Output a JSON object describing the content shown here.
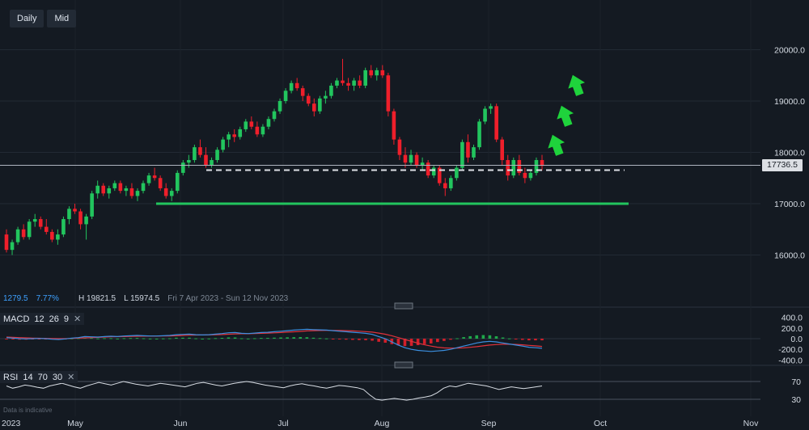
{
  "toolbar": {
    "daily_label": "Daily",
    "mid_label": "Mid"
  },
  "stats": {
    "change": "1279.5",
    "change_pct": "7.77%",
    "high": "H 19821.5",
    "low": "L 15974.5",
    "range": "Fri 7 Apr 2023 - Sun 12 Nov 2023"
  },
  "current_price": "17736.5",
  "disclaimer": "Data is indicative",
  "macd": {
    "label": "MACD",
    "p1": "12",
    "p2": "26",
    "p3": "9",
    "close": "✕"
  },
  "rsi": {
    "label": "RSI",
    "p1": "14",
    "p2": "70",
    "p3": "30",
    "close": "✕"
  },
  "colors": {
    "bull": "#22c55e",
    "bear": "#ef1f2b",
    "support": "#22c55e",
    "arrow": "#1fd33c",
    "macd_line": "#3b8fe0",
    "signal_line": "#e0323c"
  },
  "chart_data": {
    "type": "candlestick",
    "price_axis": {
      "ticks": [
        16000.0,
        17000.0,
        18000.0,
        19000.0,
        20000.0
      ],
      "labels": [
        "16000.0",
        "17000.0",
        "18000.0",
        "19000.0",
        "20000.0"
      ]
    },
    "x_axis": {
      "labels": [
        "2023",
        "May",
        "Jun",
        "Jul",
        "Aug",
        "Sep",
        "Oct",
        "Nov"
      ]
    },
    "macd_axis": {
      "ticks": [
        400,
        200,
        0,
        -200,
        -400
      ],
      "labels": [
        "400.0",
        "200.0",
        "0.0",
        "-200.0",
        "-400.0"
      ]
    },
    "rsi_axis": {
      "ticks": [
        70,
        30
      ],
      "labels": [
        "70",
        "30"
      ]
    },
    "horizontal_levels": [
      {
        "name": "resistance-dashed",
        "price": 17700,
        "style": "dashed",
        "color": "#dcdfe4"
      },
      {
        "name": "support",
        "price": 17000,
        "style": "solid",
        "color": "#22c55e"
      }
    ],
    "ohlc": [
      [
        16400,
        16500,
        16050,
        16100
      ],
      [
        16100,
        16300,
        16000,
        16250
      ],
      [
        16250,
        16550,
        16200,
        16500
      ],
      [
        16500,
        16600,
        16300,
        16350
      ],
      [
        16350,
        16700,
        16300,
        16650
      ],
      [
        16650,
        16800,
        16550,
        16700
      ],
      [
        16700,
        16750,
        16500,
        16550
      ],
      [
        16550,
        16700,
        16400,
        16450
      ],
      [
        16450,
        16500,
        16250,
        16300
      ],
      [
        16300,
        16500,
        16200,
        16400
      ],
      [
        16400,
        16750,
        16350,
        16700
      ],
      [
        16700,
        16950,
        16600,
        16900
      ],
      [
        16900,
        17000,
        16800,
        16850
      ],
      [
        16850,
        16900,
        16500,
        16600
      ],
      [
        16600,
        16800,
        16300,
        16750
      ],
      [
        16750,
        17250,
        16700,
        17200
      ],
      [
        17200,
        17450,
        17100,
        17350
      ],
      [
        17350,
        17400,
        17150,
        17200
      ],
      [
        17200,
        17350,
        17100,
        17300
      ],
      [
        17300,
        17450,
        17250,
        17400
      ],
      [
        17400,
        17450,
        17200,
        17250
      ],
      [
        17250,
        17350,
        17150,
        17300
      ],
      [
        17300,
        17400,
        17100,
        17150
      ],
      [
        17150,
        17300,
        17050,
        17250
      ],
      [
        17250,
        17450,
        17200,
        17400
      ],
      [
        17400,
        17600,
        17350,
        17550
      ],
      [
        17550,
        17700,
        17450,
        17500
      ],
      [
        17500,
        17550,
        17250,
        17300
      ],
      [
        17300,
        17400,
        17100,
        17150
      ],
      [
        17150,
        17300,
        17050,
        17250
      ],
      [
        17250,
        17650,
        17200,
        17600
      ],
      [
        17600,
        17850,
        17550,
        17800
      ],
      [
        17800,
        17950,
        17700,
        17850
      ],
      [
        17850,
        18150,
        17800,
        18100
      ],
      [
        18100,
        18250,
        17900,
        17950
      ],
      [
        17950,
        18100,
        17700,
        17750
      ],
      [
        17750,
        17900,
        17700,
        17850
      ],
      [
        17850,
        18100,
        17800,
        18050
      ],
      [
        18050,
        18300,
        18000,
        18250
      ],
      [
        18250,
        18400,
        18100,
        18350
      ],
      [
        18350,
        18450,
        18200,
        18300
      ],
      [
        18300,
        18500,
        18250,
        18450
      ],
      [
        18450,
        18650,
        18400,
        18600
      ],
      [
        18600,
        18700,
        18450,
        18500
      ],
      [
        18500,
        18600,
        18300,
        18350
      ],
      [
        18350,
        18550,
        18300,
        18500
      ],
      [
        18500,
        18700,
        18450,
        18650
      ],
      [
        18650,
        18850,
        18600,
        18800
      ],
      [
        18800,
        19050,
        18750,
        19000
      ],
      [
        19000,
        19250,
        18950,
        19200
      ],
      [
        19200,
        19400,
        19150,
        19350
      ],
      [
        19350,
        19450,
        19200,
        19250
      ],
      [
        19250,
        19300,
        19000,
        19100
      ],
      [
        19100,
        19150,
        18900,
        18950
      ],
      [
        18950,
        19050,
        18700,
        18800
      ],
      [
        18800,
        19100,
        18750,
        19050
      ],
      [
        19050,
        19200,
        18950,
        19100
      ],
      [
        19100,
        19350,
        19050,
        19300
      ],
      [
        19300,
        19450,
        19250,
        19400
      ],
      [
        19400,
        19821.5,
        19300,
        19350
      ],
      [
        19350,
        19450,
        19200,
        19300
      ],
      [
        19300,
        19450,
        19200,
        19400
      ],
      [
        19400,
        19500,
        19250,
        19300
      ],
      [
        19300,
        19650,
        19250,
        19600
      ],
      [
        19600,
        19700,
        19450,
        19500
      ],
      [
        19500,
        19650,
        19400,
        19600
      ],
      [
        19600,
        19700,
        19450,
        19500
      ],
      [
        19500,
        19550,
        18700,
        18800
      ],
      [
        18800,
        18850,
        18150,
        18250
      ],
      [
        18250,
        18300,
        17850,
        17950
      ],
      [
        17950,
        18100,
        17700,
        17800
      ],
      [
        17800,
        18050,
        17750,
        17950
      ],
      [
        17950,
        18000,
        17700,
        17750
      ],
      [
        17750,
        17900,
        17650,
        17800
      ],
      [
        17800,
        17850,
        17500,
        17550
      ],
      [
        17550,
        17750,
        17500,
        17700
      ],
      [
        17700,
        17750,
        17350,
        17400
      ],
      [
        17400,
        17500,
        17150,
        17300
      ],
      [
        17300,
        17550,
        17250,
        17500
      ],
      [
        17500,
        17750,
        17450,
        17700
      ],
      [
        17700,
        18250,
        17650,
        18200
      ],
      [
        18200,
        18350,
        17800,
        17900
      ],
      [
        17900,
        18150,
        17850,
        18100
      ],
      [
        18100,
        18650,
        18050,
        18600
      ],
      [
        18600,
        18900,
        18550,
        18850
      ],
      [
        18850,
        18950,
        18750,
        18900
      ],
      [
        18900,
        18950,
        18200,
        18250
      ],
      [
        18250,
        18300,
        17750,
        17850
      ],
      [
        17850,
        17950,
        17450,
        17550
      ],
      [
        17550,
        17900,
        17500,
        17850
      ],
      [
        17850,
        17950,
        17550,
        17600
      ],
      [
        17600,
        17700,
        17400,
        17500
      ],
      [
        17500,
        17650,
        17450,
        17600
      ],
      [
        17600,
        17900,
        17550,
        17850
      ],
      [
        17850,
        17950,
        17650,
        17736.5
      ]
    ],
    "macd": {
      "macd_line": [
        20,
        10,
        0,
        -5,
        0,
        5,
        0,
        -10,
        -15,
        -5,
        10,
        20,
        40,
        35,
        30,
        40,
        45,
        40,
        50,
        55,
        60,
        55,
        50,
        50,
        55,
        60,
        75,
        80,
        85,
        75,
        70,
        75,
        85,
        95,
        110,
        115,
        100,
        95,
        105,
        115,
        120,
        130,
        140,
        150,
        160,
        170,
        175,
        170,
        165,
        160,
        150,
        140,
        130,
        120,
        110,
        100,
        80,
        40,
        0,
        -60,
        -120,
        -170,
        -200,
        -220,
        -230,
        -240,
        -230,
        -220,
        -200,
        -170,
        -140,
        -110,
        -80,
        -60,
        -50,
        -60,
        -80,
        -100,
        -120,
        -140,
        -160,
        -170,
        -180
      ],
      "signal_line": [
        30,
        25,
        20,
        15,
        10,
        8,
        5,
        3,
        0,
        0,
        5,
        10,
        15,
        20,
        25,
        30,
        35,
        38,
        40,
        42,
        45,
        47,
        48,
        49,
        50,
        52,
        55,
        60,
        65,
        68,
        70,
        71,
        74,
        78,
        84,
        90,
        92,
        93,
        96,
        100,
        104,
        109,
        115,
        122,
        129,
        137,
        145,
        150,
        153,
        155,
        155,
        153,
        150,
        145,
        139,
        132,
        122,
        105,
        84,
        55,
        20,
        -15,
        -50,
        -85,
        -115,
        -140,
        -160,
        -172,
        -178,
        -178,
        -172,
        -162,
        -150,
        -135,
        -120,
        -110,
        -105,
        -105,
        -108,
        -115,
        -125,
        -135,
        -145
      ]
    },
    "rsi": [
      60,
      55,
      58,
      62,
      60,
      57,
      55,
      60,
      63,
      66,
      62,
      58,
      55,
      60,
      64,
      68,
      65,
      62,
      66,
      70,
      67,
      64,
      62,
      60,
      63,
      66,
      64,
      62,
      60,
      58,
      62,
      66,
      68,
      65,
      62,
      60,
      63,
      66,
      68,
      70,
      68,
      65,
      62,
      60,
      58,
      56,
      60,
      63,
      65,
      62,
      60,
      57,
      55,
      58,
      61,
      60,
      58,
      56,
      52,
      40,
      30,
      28,
      30,
      32,
      30,
      28,
      30,
      33,
      35,
      38,
      45,
      55,
      60,
      58,
      62,
      66,
      64,
      62,
      60,
      56,
      52,
      55,
      58,
      56,
      54,
      56,
      58,
      60
    ]
  }
}
